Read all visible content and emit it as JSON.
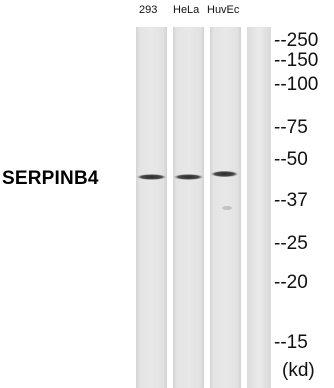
{
  "lanes": [
    {
      "label": "293"
    },
    {
      "label": "HeLa"
    },
    {
      "label": "HuvEc"
    }
  ],
  "protein": "SERPINB4",
  "markers": [
    {
      "label": "--250"
    },
    {
      "label": "--150"
    },
    {
      "label": "--100"
    },
    {
      "label": "--75"
    },
    {
      "label": "--50"
    },
    {
      "label": "--37"
    },
    {
      "label": "--25"
    },
    {
      "label": "--20"
    },
    {
      "label": "--15"
    }
  ],
  "unit": "(kd)"
}
